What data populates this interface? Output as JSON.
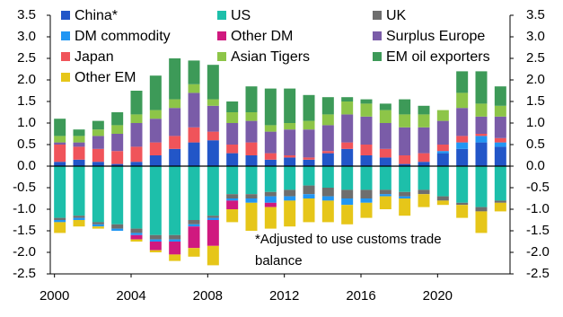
{
  "chart_data": {
    "type": "stacked-bar",
    "categories": [
      "2000",
      null,
      null,
      null,
      "2004",
      null,
      null,
      null,
      "2008",
      null,
      null,
      null,
      "2012",
      null,
      null,
      null,
      "2016",
      null,
      null,
      null,
      "2020",
      null,
      null,
      null
    ],
    "series": [
      {
        "name": "China*",
        "color": "#2256c8",
        "values": [
          0.1,
          0.15,
          0.1,
          0.05,
          0.1,
          0.25,
          0.4,
          0.55,
          0.6,
          0.3,
          0.25,
          0.15,
          0.2,
          0.15,
          0.3,
          0.4,
          0.25,
          0.2,
          0.05,
          0.1,
          0.3,
          0.4,
          0.55,
          0.45
        ]
      },
      {
        "name": "US",
        "color": "#1dbfaa",
        "values": [
          -1.2,
          -1.15,
          -1.3,
          -1.35,
          -1.45,
          -1.6,
          -1.6,
          -1.25,
          -1.15,
          -0.65,
          -0.65,
          -0.6,
          -0.55,
          -0.45,
          -0.5,
          -0.55,
          -0.55,
          -0.55,
          -0.6,
          -0.55,
          -0.7,
          -0.85,
          -0.95,
          -0.8
        ]
      },
      {
        "name": "UK",
        "color": "#6e6e6e",
        "values": [
          -0.05,
          -0.05,
          -0.05,
          -0.1,
          -0.1,
          -0.1,
          -0.1,
          -0.1,
          -0.05,
          -0.1,
          -0.1,
          -0.1,
          -0.15,
          -0.2,
          -0.2,
          -0.2,
          -0.2,
          -0.1,
          -0.1,
          -0.1,
          -0.1,
          -0.05,
          -0.1,
          -0.05
        ]
      },
      {
        "name": "DM commodity",
        "color": "#2196f3",
        "values": [
          -0.05,
          -0.05,
          -0.05,
          -0.05,
          -0.05,
          -0.05,
          -0.05,
          -0.05,
          -0.05,
          -0.05,
          -0.1,
          -0.15,
          -0.1,
          -0.1,
          -0.1,
          -0.15,
          -0.1,
          -0.05,
          -0.05,
          0,
          0.05,
          0.15,
          0.15,
          0.1
        ]
      },
      {
        "name": "Other DM",
        "color": "#d0197f",
        "values": [
          0,
          0,
          0,
          0,
          -0.1,
          -0.2,
          -0.3,
          -0.5,
          -0.6,
          -0.2,
          0,
          -0.1,
          0,
          0,
          0,
          0,
          0,
          0,
          0,
          0,
          0,
          0,
          0,
          0
        ]
      },
      {
        "name": "Surplus Europe",
        "color": "#7a5ca8",
        "values": [
          0.05,
          0.1,
          0.3,
          0.4,
          0.55,
          0.55,
          0.65,
          0.8,
          0.6,
          0.5,
          0.5,
          0.5,
          0.6,
          0.65,
          0.6,
          0.65,
          0.65,
          0.6,
          0.65,
          0.6,
          0.55,
          0.65,
          0.4,
          0.5
        ]
      },
      {
        "name": "Japan",
        "color": "#f0545a",
        "values": [
          0.4,
          0.3,
          0.3,
          0.3,
          0.35,
          0.3,
          0.3,
          0.35,
          0.2,
          0.2,
          0.3,
          0.15,
          0.05,
          0.05,
          0.05,
          0.15,
          0.25,
          0.2,
          0.2,
          0.2,
          0.15,
          0.15,
          0.05,
          0.1
        ]
      },
      {
        "name": "Asian Tigers",
        "color": "#8dc548",
        "values": [
          0.15,
          0.15,
          0.15,
          0.2,
          0.2,
          0.2,
          0.2,
          0.2,
          0.15,
          0.25,
          0.2,
          0.15,
          0.15,
          0.2,
          0.25,
          0.3,
          0.3,
          0.3,
          0.3,
          0.3,
          0.25,
          0.35,
          0.3,
          0.25
        ]
      },
      {
        "name": "EM oil exporters",
        "color": "#3d9a58",
        "values": [
          0.4,
          0.15,
          0.2,
          0.3,
          0.55,
          0.8,
          0.95,
          0.55,
          0.8,
          0.25,
          0.6,
          0.85,
          0.8,
          0.6,
          0.4,
          0.1,
          0.1,
          0.15,
          0.35,
          0.2,
          0,
          0.5,
          0.75,
          0.45
        ]
      },
      {
        "name": "Other EM",
        "color": "#e6c619",
        "values": [
          -0.25,
          -0.15,
          -0.05,
          0,
          -0.05,
          -0.05,
          -0.15,
          -0.2,
          -0.45,
          -0.3,
          -0.65,
          -0.5,
          -0.6,
          -0.55,
          -0.5,
          -0.45,
          -0.35,
          -0.3,
          -0.4,
          -0.3,
          -0.1,
          -0.3,
          -0.5,
          -0.2
        ]
      }
    ],
    "ylim": [
      -2.5,
      3.5
    ],
    "yticks": [
      3.5,
      {
        "value": 3,
        "label": "3.0"
      },
      2.5,
      {
        "value": 2,
        "label": "2.0"
      },
      1.5,
      {
        "value": 1,
        "label": "1.0"
      },
      0.5,
      {
        "value": 0,
        "label": "0.0"
      },
      -0.5,
      {
        "value": -1,
        "label": "-1.0"
      },
      -1.5,
      {
        "value": -2,
        "label": "-2.0"
      },
      -2.5
    ],
    "y2lim": [
      -2.5,
      3.5
    ],
    "y2ticks": [
      3.5,
      {
        "value": 3,
        "label": "3.0"
      },
      2.5,
      {
        "value": 2,
        "label": "2.0"
      },
      1.5,
      {
        "value": 1,
        "label": "1.0"
      },
      0.5,
      {
        "value": 0,
        "label": "0.0"
      },
      -0.5,
      {
        "value": -1,
        "label": "-1.0"
      },
      -1.5,
      {
        "value": -2,
        "label": "-2.0"
      },
      -2.5
    ],
    "annotation": [
      "*Adjusted to use customs trade",
      "balance"
    ],
    "grid": false
  }
}
